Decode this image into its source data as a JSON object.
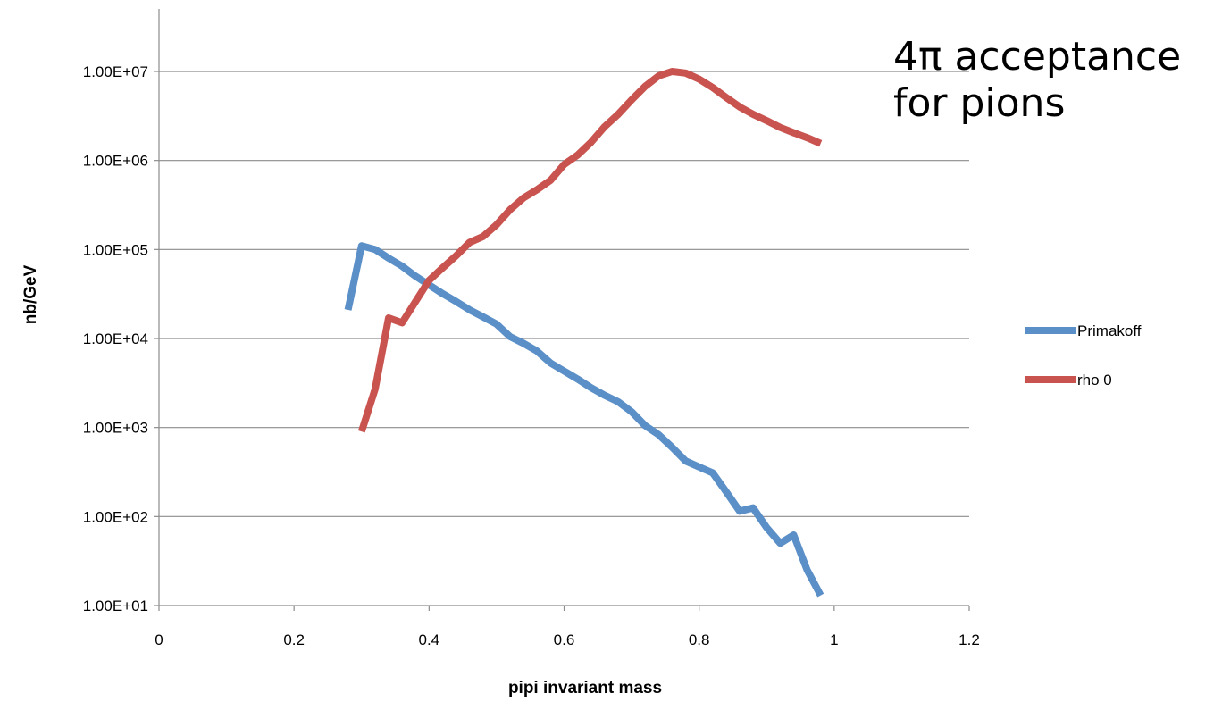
{
  "chart_data": {
    "type": "line",
    "title": "",
    "xlabel": "pipi invariant mass",
    "ylabel": "nb/GeV",
    "xlim": [
      0,
      1.2
    ],
    "ylim": [
      10,
      100000000
    ],
    "yscale": "log",
    "x_ticks": [
      "0",
      "0.2",
      "0.4",
      "0.6",
      "0.8",
      "1",
      "1.2"
    ],
    "y_ticks": [
      "1.00E+01",
      "1.00E+02",
      "1.00E+03",
      "1.00E+04",
      "1.00E+05",
      "1.00E+06",
      "1.00E+07"
    ],
    "grid": "horizontal",
    "legend_position": "right",
    "annotation": "4π acceptance\nfor pions",
    "series": [
      {
        "name": "Primakoff",
        "color": "#5b8fc7",
        "x": [
          0.28,
          0.3,
          0.32,
          0.34,
          0.36,
          0.38,
          0.4,
          0.42,
          0.44,
          0.46,
          0.48,
          0.5,
          0.52,
          0.54,
          0.56,
          0.58,
          0.6,
          0.62,
          0.64,
          0.66,
          0.68,
          0.7,
          0.72,
          0.74,
          0.76,
          0.78,
          0.8,
          0.82,
          0.84,
          0.86,
          0.88,
          0.9,
          0.92,
          0.94,
          0.96,
          0.98
        ],
        "y": [
          21000,
          110000,
          100000,
          80000,
          65000,
          50000,
          40000,
          32000,
          26000,
          21000,
          17500,
          14500,
          10500,
          8800,
          7200,
          5300,
          4300,
          3500,
          2800,
          2300,
          1950,
          1500,
          1050,
          830,
          600,
          420,
          360,
          310,
          190,
          115,
          125,
          75,
          50,
          62,
          25,
          13
        ]
      },
      {
        "name": "rho 0",
        "color": "#c9534f",
        "x": [
          0.3,
          0.32,
          0.34,
          0.36,
          0.38,
          0.4,
          0.42,
          0.44,
          0.46,
          0.48,
          0.5,
          0.52,
          0.54,
          0.56,
          0.58,
          0.6,
          0.62,
          0.64,
          0.66,
          0.68,
          0.7,
          0.72,
          0.74,
          0.76,
          0.78,
          0.8,
          0.82,
          0.84,
          0.86,
          0.88,
          0.9,
          0.92,
          0.94,
          0.96,
          0.98
        ],
        "y": [
          900,
          2700,
          17000,
          15000,
          26000,
          45000,
          62000,
          85000,
          120000,
          140000,
          190000,
          280000,
          380000,
          470000,
          600000,
          900000,
          1150000,
          1600000,
          2400000,
          3300000,
          4800000,
          6800000,
          8900000,
          10000000,
          9600000,
          8200000,
          6600000,
          5100000,
          4000000,
          3300000,
          2800000,
          2350000,
          2050000,
          1800000,
          1550000
        ]
      }
    ]
  }
}
